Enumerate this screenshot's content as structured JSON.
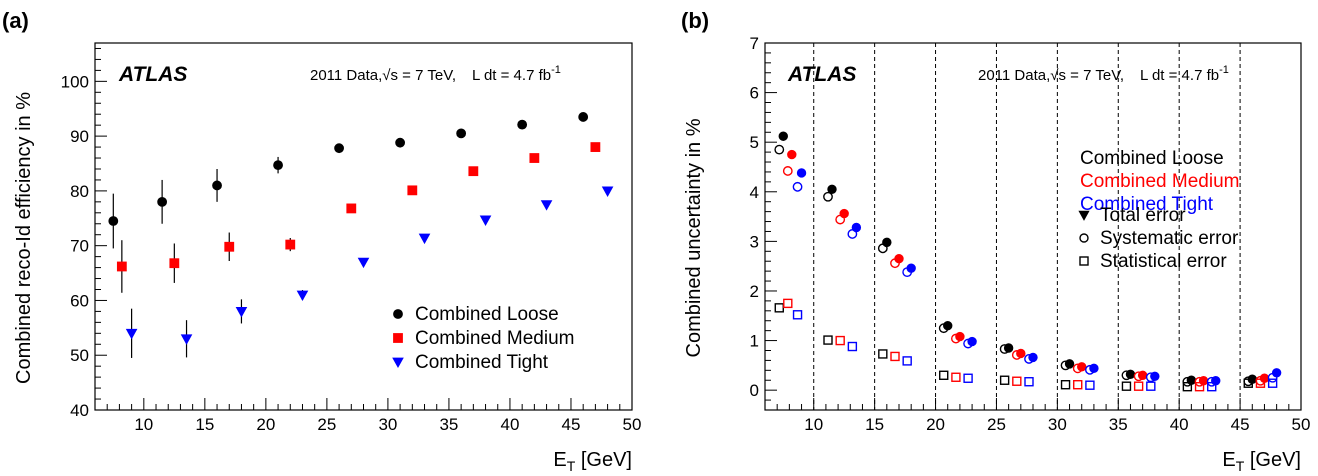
{
  "chart_data": [
    {
      "type": "scatter",
      "panel_label": "(a)",
      "atlas_label": "ATLAS",
      "info_text": {
        "prefix": "2011 Data,",
        "sqrt_s": "s = 7 TeV,",
        "lumi_a": "L dt = 4.7 fb",
        "lumi_exp": "-1"
      },
      "xlabel": {
        "main": "E",
        "sub": "T",
        "unit": " [GeV]"
      },
      "ylabel": "Combined reco-Id efficiency in %",
      "xlim": [
        6,
        50
      ],
      "ylim": [
        40,
        107
      ],
      "xticks": [
        "10",
        "15",
        "20",
        "25",
        "30",
        "35",
        "40",
        "45",
        "50"
      ],
      "yticks": [
        "40",
        "50",
        "60",
        "70",
        "80",
        "90",
        "100"
      ],
      "legend_position": "bottom-right",
      "series": [
        {
          "name": "Combined Loose",
          "color": "#000000",
          "marker": "circle",
          "points": [
            {
              "x": 7.5,
              "y": 74.5,
              "err": 5.0
            },
            {
              "x": 11.5,
              "y": 78.0,
              "err": 4.0
            },
            {
              "x": 16.0,
              "y": 81.0,
              "err": 3.0
            },
            {
              "x": 21.0,
              "y": 84.7,
              "err": 1.5
            },
            {
              "x": 26.0,
              "y": 87.8,
              "err": 0.8
            },
            {
              "x": 31.0,
              "y": 88.8,
              "err": 0.4
            },
            {
              "x": 36.0,
              "y": 90.5,
              "err": 0.3
            },
            {
              "x": 41.0,
              "y": 92.1,
              "err": 0.3
            },
            {
              "x": 46.0,
              "y": 93.5,
              "err": 0.3
            }
          ]
        },
        {
          "name": "Combined Medium",
          "color": "#ff0000",
          "marker": "square",
          "points": [
            {
              "x": 8.2,
              "y": 66.2,
              "err": 4.8
            },
            {
              "x": 12.5,
              "y": 66.8,
              "err": 3.6
            },
            {
              "x": 17.0,
              "y": 69.8,
              "err": 2.6
            },
            {
              "x": 22.0,
              "y": 70.2,
              "err": 1.2
            },
            {
              "x": 27.0,
              "y": 76.8,
              "err": 0.6
            },
            {
              "x": 32.0,
              "y": 80.1,
              "err": 0.4
            },
            {
              "x": 37.0,
              "y": 83.6,
              "err": 0.3
            },
            {
              "x": 42.0,
              "y": 86.0,
              "err": 0.3
            },
            {
              "x": 47.0,
              "y": 88.0,
              "err": 0.3
            }
          ]
        },
        {
          "name": "Combined Tight",
          "color": "#0000ff",
          "marker": "triangle-down",
          "points": [
            {
              "x": 9.0,
              "y": 54.0,
              "err": 4.5
            },
            {
              "x": 13.5,
              "y": 53.0,
              "err": 3.4
            },
            {
              "x": 18.0,
              "y": 58.0,
              "err": 2.2
            },
            {
              "x": 23.0,
              "y": 61.0,
              "err": 0.9
            },
            {
              "x": 28.0,
              "y": 67.0,
              "err": 0.5
            },
            {
              "x": 33.0,
              "y": 71.4,
              "err": 0.4
            },
            {
              "x": 38.0,
              "y": 74.7,
              "err": 0.3
            },
            {
              "x": 43.0,
              "y": 77.5,
              "err": 0.3
            },
            {
              "x": 48.0,
              "y": 80.0,
              "err": 0.3
            }
          ]
        }
      ]
    },
    {
      "type": "scatter",
      "panel_label": "(b)",
      "atlas_label": "ATLAS",
      "info_text": {
        "prefix": "2011 Data,",
        "sqrt_s": "s = 7 TeV,",
        "lumi_a": "L dt = 4.7 fb",
        "lumi_exp": "-1"
      },
      "xlabel": {
        "main": "E",
        "sub": "T",
        "unit": " [GeV]"
      },
      "ylabel": "Combined uncertainty in %",
      "xlim": [
        6,
        50
      ],
      "ylim": [
        -0.4,
        7
      ],
      "xticks": [
        "10",
        "15",
        "20",
        "25",
        "30",
        "35",
        "40",
        "45",
        "50"
      ],
      "yticks": [
        "0",
        "1",
        "2",
        "3",
        "4",
        "5",
        "6",
        "7"
      ],
      "bin_edges": [
        10,
        15,
        20,
        25,
        30,
        35,
        40,
        45
      ],
      "legend_position": "top-right",
      "legend_series": [
        "Combined Loose",
        "Combined Medium",
        "Combined Tight"
      ],
      "legend_markers": [
        "Total error",
        "Systematic error",
        "Statistical error"
      ],
      "series": [
        {
          "name": "Combined Loose",
          "color": "#000000",
          "x": [
            7.5,
            11.5,
            16.0,
            21.0,
            26.0,
            31.0,
            36.0,
            41.0,
            46.0
          ],
          "total": [
            5.12,
            4.05,
            2.98,
            1.3,
            0.85,
            0.53,
            0.32,
            0.2,
            0.22
          ],
          "systematic": [
            4.85,
            3.9,
            2.86,
            1.25,
            0.83,
            0.5,
            0.3,
            0.17,
            0.18
          ],
          "statistical": [
            1.66,
            1.01,
            0.73,
            0.3,
            0.2,
            0.11,
            0.08,
            0.07,
            0.14
          ]
        },
        {
          "name": "Combined Medium",
          "color": "#ff0000",
          "x": [
            8.2,
            12.5,
            17.0,
            22.0,
            27.0,
            32.0,
            37.0,
            42.0,
            47.0
          ],
          "total": [
            4.75,
            3.56,
            2.65,
            1.08,
            0.74,
            0.47,
            0.3,
            0.19,
            0.24
          ],
          "systematic": [
            4.42,
            3.44,
            2.56,
            1.04,
            0.71,
            0.44,
            0.28,
            0.17,
            0.19
          ],
          "statistical": [
            1.75,
            1.0,
            0.68,
            0.26,
            0.18,
            0.11,
            0.08,
            0.07,
            0.14
          ]
        },
        {
          "name": "Combined Tight",
          "color": "#0000ff",
          "x": [
            9.0,
            13.5,
            18.0,
            23.0,
            28.0,
            33.0,
            38.0,
            43.0,
            48.0
          ],
          "total": [
            4.38,
            3.28,
            2.46,
            0.98,
            0.66,
            0.44,
            0.28,
            0.19,
            0.35
          ],
          "systematic": [
            4.1,
            3.15,
            2.38,
            0.94,
            0.63,
            0.41,
            0.26,
            0.17,
            0.25
          ],
          "statistical": [
            1.52,
            0.88,
            0.59,
            0.24,
            0.17,
            0.1,
            0.08,
            0.07,
            0.14
          ]
        }
      ]
    }
  ]
}
